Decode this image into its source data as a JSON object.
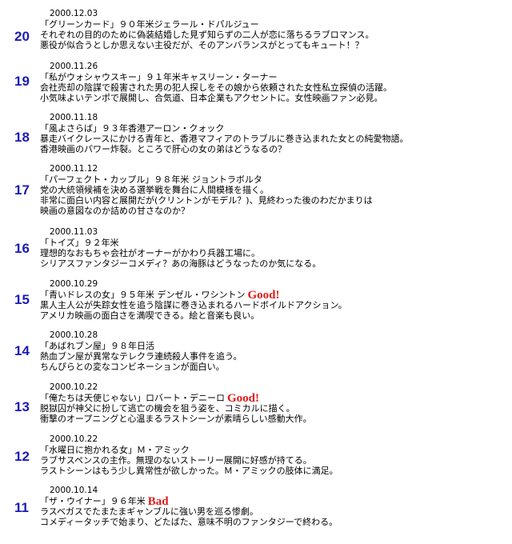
{
  "entries": [
    {
      "number": "20",
      "date": "2000.12.03",
      "title": "「グリーンカード」９０年米ジェラール・ドパルジュー",
      "badge": "",
      "desc": [
        "それぞれの目的のために偽装結婚した見ず知らずの二人が恋に落ちるラブロマンス。",
        "悪役が似合うとしか思えない主役だが、そのアンバランスがとってもキュート！？"
      ]
    },
    {
      "number": "19",
      "date": "2000.11.26",
      "title": "「私がウォシャウスキー」９１年米キャスリーン・ターナー",
      "badge": "",
      "desc": [
        "会社売却の陰謀で殺害された男の犯人探しをその娘から依頼された女性私立探偵の活躍。",
        "小気味よいテンポで展開し、合気道、日本企業もアクセントに。女性映画ファン必見。"
      ]
    },
    {
      "number": "18",
      "date": "2000.11.18",
      "title": "「風よさらば」９３年香港アーロン・クォック",
      "badge": "",
      "desc": [
        "暴走バイクレースにかける青年と、香港マフィアのトラブルに巻き込まれた女との純愛物語。",
        "香港映画のパワー炸裂。ところで肝心の女の弟はどうなるの？"
      ]
    },
    {
      "number": "17",
      "date": "2000.11.12",
      "title": "「パーフェクト・カップル」９８年米 ジョントラボルタ",
      "badge": "",
      "desc": [
        "党の大統領候補を決める選挙戦を舞台に人間模様を描く。",
        "非常に面白い内容と展開だが(クリントンがモデル？)、見終わった後のわだかまりは",
        "映画の意図なのか詰めの甘さなのか？"
      ]
    },
    {
      "number": "16",
      "date": "2000.11.03",
      "title": "「トイズ」９２年米",
      "badge": "",
      "desc": [
        "理想的なおもちゃ会社がオーナーがかわり兵器工場に。",
        "シリアスファンタジーコメディ？あの海豚はどうなったのか気になる。"
      ]
    },
    {
      "number": "15",
      "date": "2000.10.29",
      "title": "「青いドレスの女」９５年米 デンゼル・ワシントン",
      "badge": "Good!",
      "desc": [
        "黒人主人公が失踪女性を追う陰謀に巻き込まれるハードボイルドアクション。",
        "アメリカ映画の面白さを満喫できる。絵と音楽も良い。"
      ]
    },
    {
      "number": "14",
      "date": "2000.10.28",
      "title": "「あばれブン屋」９８年日活",
      "badge": "",
      "desc": [
        "熱血ブン屋が異常なテレクラ連続殺人事件を追う。",
        "ちんぴらとの変なコンビネーションが面白い。"
      ]
    },
    {
      "number": "13",
      "date": "2000.10.22",
      "title": "「俺たちは天使じゃない」ロバート・デニーロ",
      "badge": "Good!",
      "desc": [
        "脱獄囚が神父に扮して逃亡の機会を狙う姿を、コミカルに描く。",
        "衝撃のオープニングと心温まるラストシーンが素晴らしい感動大作。"
      ]
    },
    {
      "number": "12",
      "date": "2000.10.22",
      "title": "「水曜日に抱かれる女」Ｍ・アミック",
      "badge": "",
      "desc": [
        "ラブサスペンスの主作。無理のないストーリー展開に好感が持てる。",
        "ラストシーンはもう少し異常性が欲しかった。Ｍ・アミックの肢体に満足。"
      ]
    },
    {
      "number": "11",
      "date": "2000.10.14",
      "title": "「ザ・ウイナー」９６年米",
      "badge": "Bad",
      "desc": [
        "ラスベガスでたまたまギャンブルに強い男を巡る惨劇。",
        "コメディータッチで始まり、どたばた、意味不明のファンタジーで終わる。"
      ]
    }
  ]
}
